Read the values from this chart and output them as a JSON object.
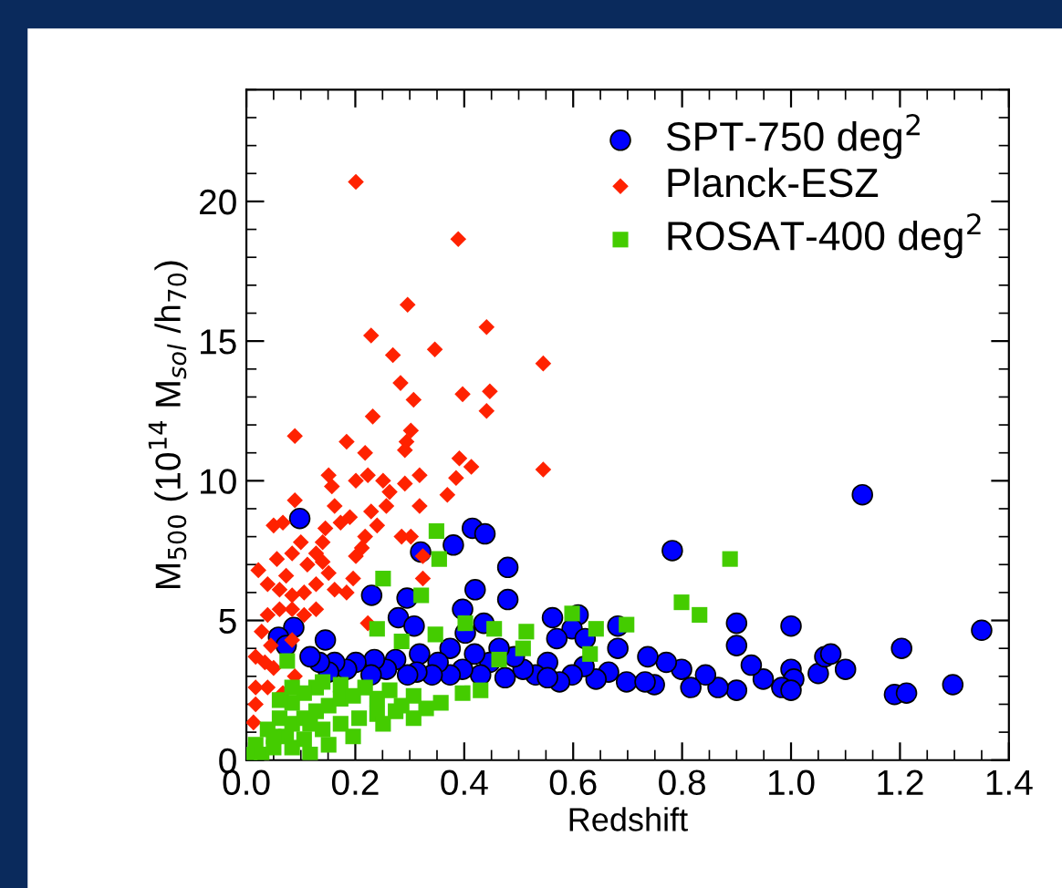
{
  "chart_data": {
    "type": "scatter",
    "xlabel": "Redshift",
    "ylabel": "M$_{500}$ (10$^{14}$ M$_{sol}$ /h$_{70}$)",
    "xlim": [
      0,
      1.4
    ],
    "ylim": [
      0,
      24
    ],
    "xticks": [
      {
        "value": 0,
        "label": "0.0"
      },
      {
        "value": 0.2,
        "label": "0.2"
      },
      {
        "value": 0.4,
        "label": "0.4"
      },
      {
        "value": 0.6,
        "label": "0.6"
      },
      {
        "value": 0.8,
        "label": "0.8"
      },
      {
        "value": 1.0,
        "label": "1.0"
      },
      {
        "value": 1.2,
        "label": "1.2"
      },
      {
        "value": 1.4,
        "label": "1.4"
      }
    ],
    "yticks": [
      0,
      5,
      10,
      15,
      20
    ],
    "grid": false,
    "legend": "top right",
    "series": [
      {
        "name": "SPT-750 deg$^{2}$",
        "color": "#0000ff",
        "marker": "circle",
        "x": [
          0.098,
          0.415,
          0.438,
          0.38,
          0.32,
          1.131,
          0.782,
          0.48,
          0.23,
          0.42,
          0.48,
          0.295,
          0.279,
          0.397,
          0.436,
          0.308,
          0.087,
          0.059,
          0.073,
          0.145,
          0.562,
          0.609,
          0.598,
          0.622,
          0.57,
          0.682,
          0.682,
          0.9,
          0.9,
          1.0,
          1.203,
          1.35,
          1.297,
          1.19,
          1.212,
          1.05,
          1.062,
          1.073,
          1.1,
          1.0,
          1.005,
          0.983,
          1.0,
          0.949,
          0.927,
          0.9,
          0.866,
          0.843,
          0.816,
          0.799,
          0.771,
          0.749,
          0.737,
          0.698,
          0.665,
          0.642,
          0.62,
          0.598,
          0.575,
          0.553,
          0.531,
          0.508,
          0.492,
          0.475,
          0.464,
          0.447,
          0.43,
          0.419,
          0.402,
          0.374,
          0.397,
          0.374,
          0.352,
          0.341,
          0.318,
          0.313,
          0.296,
          0.274,
          0.257,
          0.235,
          0.229,
          0.201,
          0.184,
          0.162,
          0.151,
          0.134,
          0.117,
          0.553,
          0.732
        ],
        "values": [
          8.65,
          8.3,
          8.1,
          7.7,
          7.45,
          9.5,
          7.5,
          6.9,
          5.9,
          6.1,
          5.75,
          5.8,
          5.1,
          5.4,
          4.9,
          4.8,
          4.75,
          4.4,
          4.1,
          4.3,
          5.1,
          5.2,
          4.7,
          4.35,
          4.35,
          4.8,
          4.0,
          4.9,
          4.1,
          4.8,
          4.0,
          4.65,
          2.7,
          2.35,
          2.4,
          3.1,
          3.7,
          3.8,
          3.25,
          3.25,
          2.9,
          2.6,
          2.5,
          2.9,
          3.4,
          2.5,
          2.6,
          3.05,
          2.6,
          3.25,
          3.5,
          2.7,
          3.7,
          2.8,
          3.15,
          2.9,
          3.35,
          3.05,
          2.8,
          3.5,
          3.05,
          3.25,
          3.7,
          2.95,
          4.0,
          3.5,
          3.05,
          3.8,
          4.55,
          4.0,
          3.25,
          3.05,
          3.5,
          3.05,
          3.8,
          3.15,
          3.05,
          3.6,
          3.25,
          3.6,
          3.05,
          3.5,
          3.25,
          3.5,
          3.15,
          3.5,
          3.7,
          2.95,
          2.8
        ]
      },
      {
        "name": "Planck-ESZ",
        "color": "#ff2200",
        "marker": "diamond",
        "x": [
          0.201,
          0.389,
          0.296,
          0.441,
          0.229,
          0.346,
          0.545,
          0.269,
          0.283,
          0.397,
          0.447,
          0.441,
          0.307,
          0.232,
          0.089,
          0.302,
          0.294,
          0.184,
          0.291,
          0.545,
          0.391,
          0.413,
          0.385,
          0.318,
          0.218,
          0.223,
          0.201,
          0.151,
          0.157,
          0.089,
          0.369,
          0.263,
          0.291,
          0.285,
          0.302,
          0.324,
          0.324,
          0.257,
          0.229,
          0.24,
          0.218,
          0.212,
          0.201,
          0.173,
          0.145,
          0.128,
          0.14,
          0.151,
          0.112,
          0.1,
          0.084,
          0.073,
          0.056,
          0.05,
          0.067,
          0.022,
          0.039,
          0.061,
          0.084,
          0.106,
          0.128,
          0.162,
          0.184,
          0.196,
          0.061,
          0.084,
          0.106,
          0.128,
          0.039,
          0.028,
          0.045,
          0.017,
          0.034,
          0.05,
          0.017,
          0.039,
          0.067,
          0.089,
          0.017,
          0.013,
          0.084,
          0.223,
          0.14,
          0.162,
          0.19,
          0.251,
          0.318
        ],
        "values": [
          20.7,
          18.65,
          16.3,
          15.5,
          15.2,
          14.7,
          14.2,
          14.5,
          13.5,
          13.1,
          13.2,
          12.5,
          12.9,
          12.3,
          11.6,
          11.8,
          11.4,
          11.4,
          11.1,
          10.4,
          10.8,
          10.5,
          10.1,
          10.2,
          11.0,
          10.2,
          10.0,
          10.2,
          9.8,
          9.3,
          9.5,
          9.6,
          9.9,
          8.0,
          8.0,
          6.5,
          7.3,
          9.1,
          8.9,
          8.4,
          8.0,
          7.6,
          7.3,
          8.5,
          8.3,
          7.4,
          7.1,
          6.7,
          7.0,
          7.8,
          7.4,
          6.6,
          7.2,
          8.4,
          8.5,
          6.8,
          6.3,
          6.1,
          5.9,
          6.0,
          6.3,
          6.1,
          6.0,
          6.5,
          5.4,
          5.4,
          5.2,
          5.4,
          5.2,
          4.6,
          4.1,
          3.7,
          3.5,
          3.3,
          2.6,
          2.6,
          2.4,
          3.0,
          2.0,
          1.35,
          4.3,
          4.9,
          7.8,
          9.1,
          8.7,
          10.0,
          9.1
        ]
      },
      {
        "name": "ROSAT-400 deg$^{2}$",
        "color": "#44cc00",
        "marker": "square",
        "x": [
          0.888,
          0.349,
          0.354,
          0.251,
          0.321,
          0.799,
          0.832,
          0.24,
          0.347,
          0.402,
          0.455,
          0.514,
          0.598,
          0.642,
          0.698,
          0.285,
          0.075,
          0.397,
          0.43,
          0.357,
          0.307,
          0.263,
          0.218,
          0.173,
          0.128,
          0.106,
          0.084,
          0.061,
          0.039,
          0.017,
          0.006,
          0.028,
          0.05,
          0.073,
          0.084,
          0.106,
          0.128,
          0.151,
          0.173,
          0.196,
          0.24,
          0.285,
          0.33,
          0.084,
          0.106,
          0.14,
          0.173,
          0.207,
          0.24,
          0.274,
          0.117,
          0.151,
          0.196,
          0.061,
          0.084,
          0.14,
          0.464,
          0.508,
          0.631,
          0.05,
          0.117,
          0.251,
          0.307
        ],
        "values": [
          7.2,
          8.2,
          7.2,
          6.5,
          5.9,
          5.65,
          5.2,
          4.7,
          4.5,
          4.9,
          4.7,
          4.6,
          5.25,
          4.7,
          4.85,
          4.25,
          3.55,
          2.4,
          2.5,
          2.05,
          2.3,
          2.5,
          2.6,
          2.7,
          2.6,
          2.4,
          2.05,
          1.5,
          1.1,
          0.55,
          0.2,
          0.2,
          0.45,
          0.85,
          1.3,
          1.5,
          1.75,
          1.95,
          2.2,
          2.3,
          2.2,
          1.95,
          1.85,
          0.45,
          0.75,
          1.1,
          1.3,
          1.5,
          1.65,
          1.75,
          0.2,
          0.55,
          0.85,
          2.15,
          2.6,
          2.8,
          3.6,
          4.0,
          3.8,
          0.85,
          1.3,
          1.3,
          1.5
        ]
      }
    ]
  }
}
